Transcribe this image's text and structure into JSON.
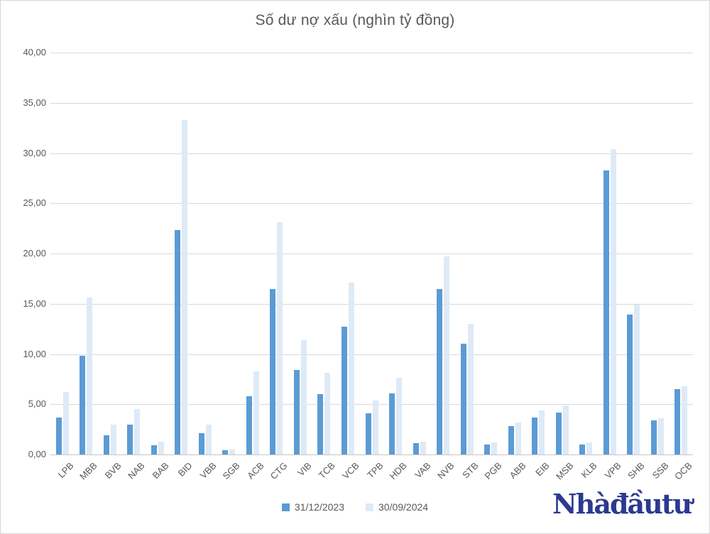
{
  "title": "Số dư nợ xấu (nghìn tỷ đồng)",
  "watermark": "Nhàđầutư",
  "colors": {
    "series_2023": "#5B9BD5",
    "series_2024": "#DEEAF6",
    "gridline": "#D9D9D9",
    "axis_text": "#595959",
    "watermark_blue": "#2B3990"
  },
  "chart_data": {
    "type": "bar",
    "title": "Số dư nợ xấu (nghìn tỷ đồng)",
    "xlabel": "",
    "ylabel": "",
    "ylim": [
      0,
      40
    ],
    "y_ticks": [
      "0,00",
      "5,00",
      "10,00",
      "15,00",
      "20,00",
      "25,00",
      "30,00",
      "35,00",
      "40,00"
    ],
    "grid": true,
    "legend_position": "bottom",
    "categories": [
      "LPB",
      "MBB",
      "BVB",
      "NAB",
      "BAB",
      "BID",
      "VBB",
      "SGB",
      "ACB",
      "CTG",
      "VIB",
      "TCB",
      "VCB",
      "TPB",
      "HDB",
      "VAB",
      "NVB",
      "STB",
      "PGB",
      "ABB",
      "EIB",
      "MSB",
      "KLB",
      "VPB",
      "SHB",
      "SSB",
      "OCB"
    ],
    "series": [
      {
        "name": "31/12/2023",
        "color": "#5B9BD5",
        "values": [
          3.7,
          9.8,
          1.9,
          3.0,
          0.9,
          22.3,
          2.1,
          0.4,
          5.8,
          16.5,
          8.4,
          6.0,
          12.7,
          4.1,
          6.1,
          1.1,
          16.5,
          11.0,
          1.0,
          2.8,
          3.7,
          4.2,
          1.0,
          28.3,
          13.9,
          3.4,
          6.5
        ]
      },
      {
        "name": "30/09/2024",
        "color": "#DEEAF6",
        "values": [
          6.2,
          15.6,
          3.0,
          4.5,
          1.3,
          33.3,
          3.0,
          0.5,
          8.3,
          23.1,
          11.4,
          8.1,
          17.1,
          5.4,
          7.6,
          1.3,
          19.7,
          13.0,
          1.2,
          3.2,
          4.4,
          4.9,
          1.2,
          30.4,
          14.9,
          3.6,
          6.8
        ]
      }
    ]
  }
}
